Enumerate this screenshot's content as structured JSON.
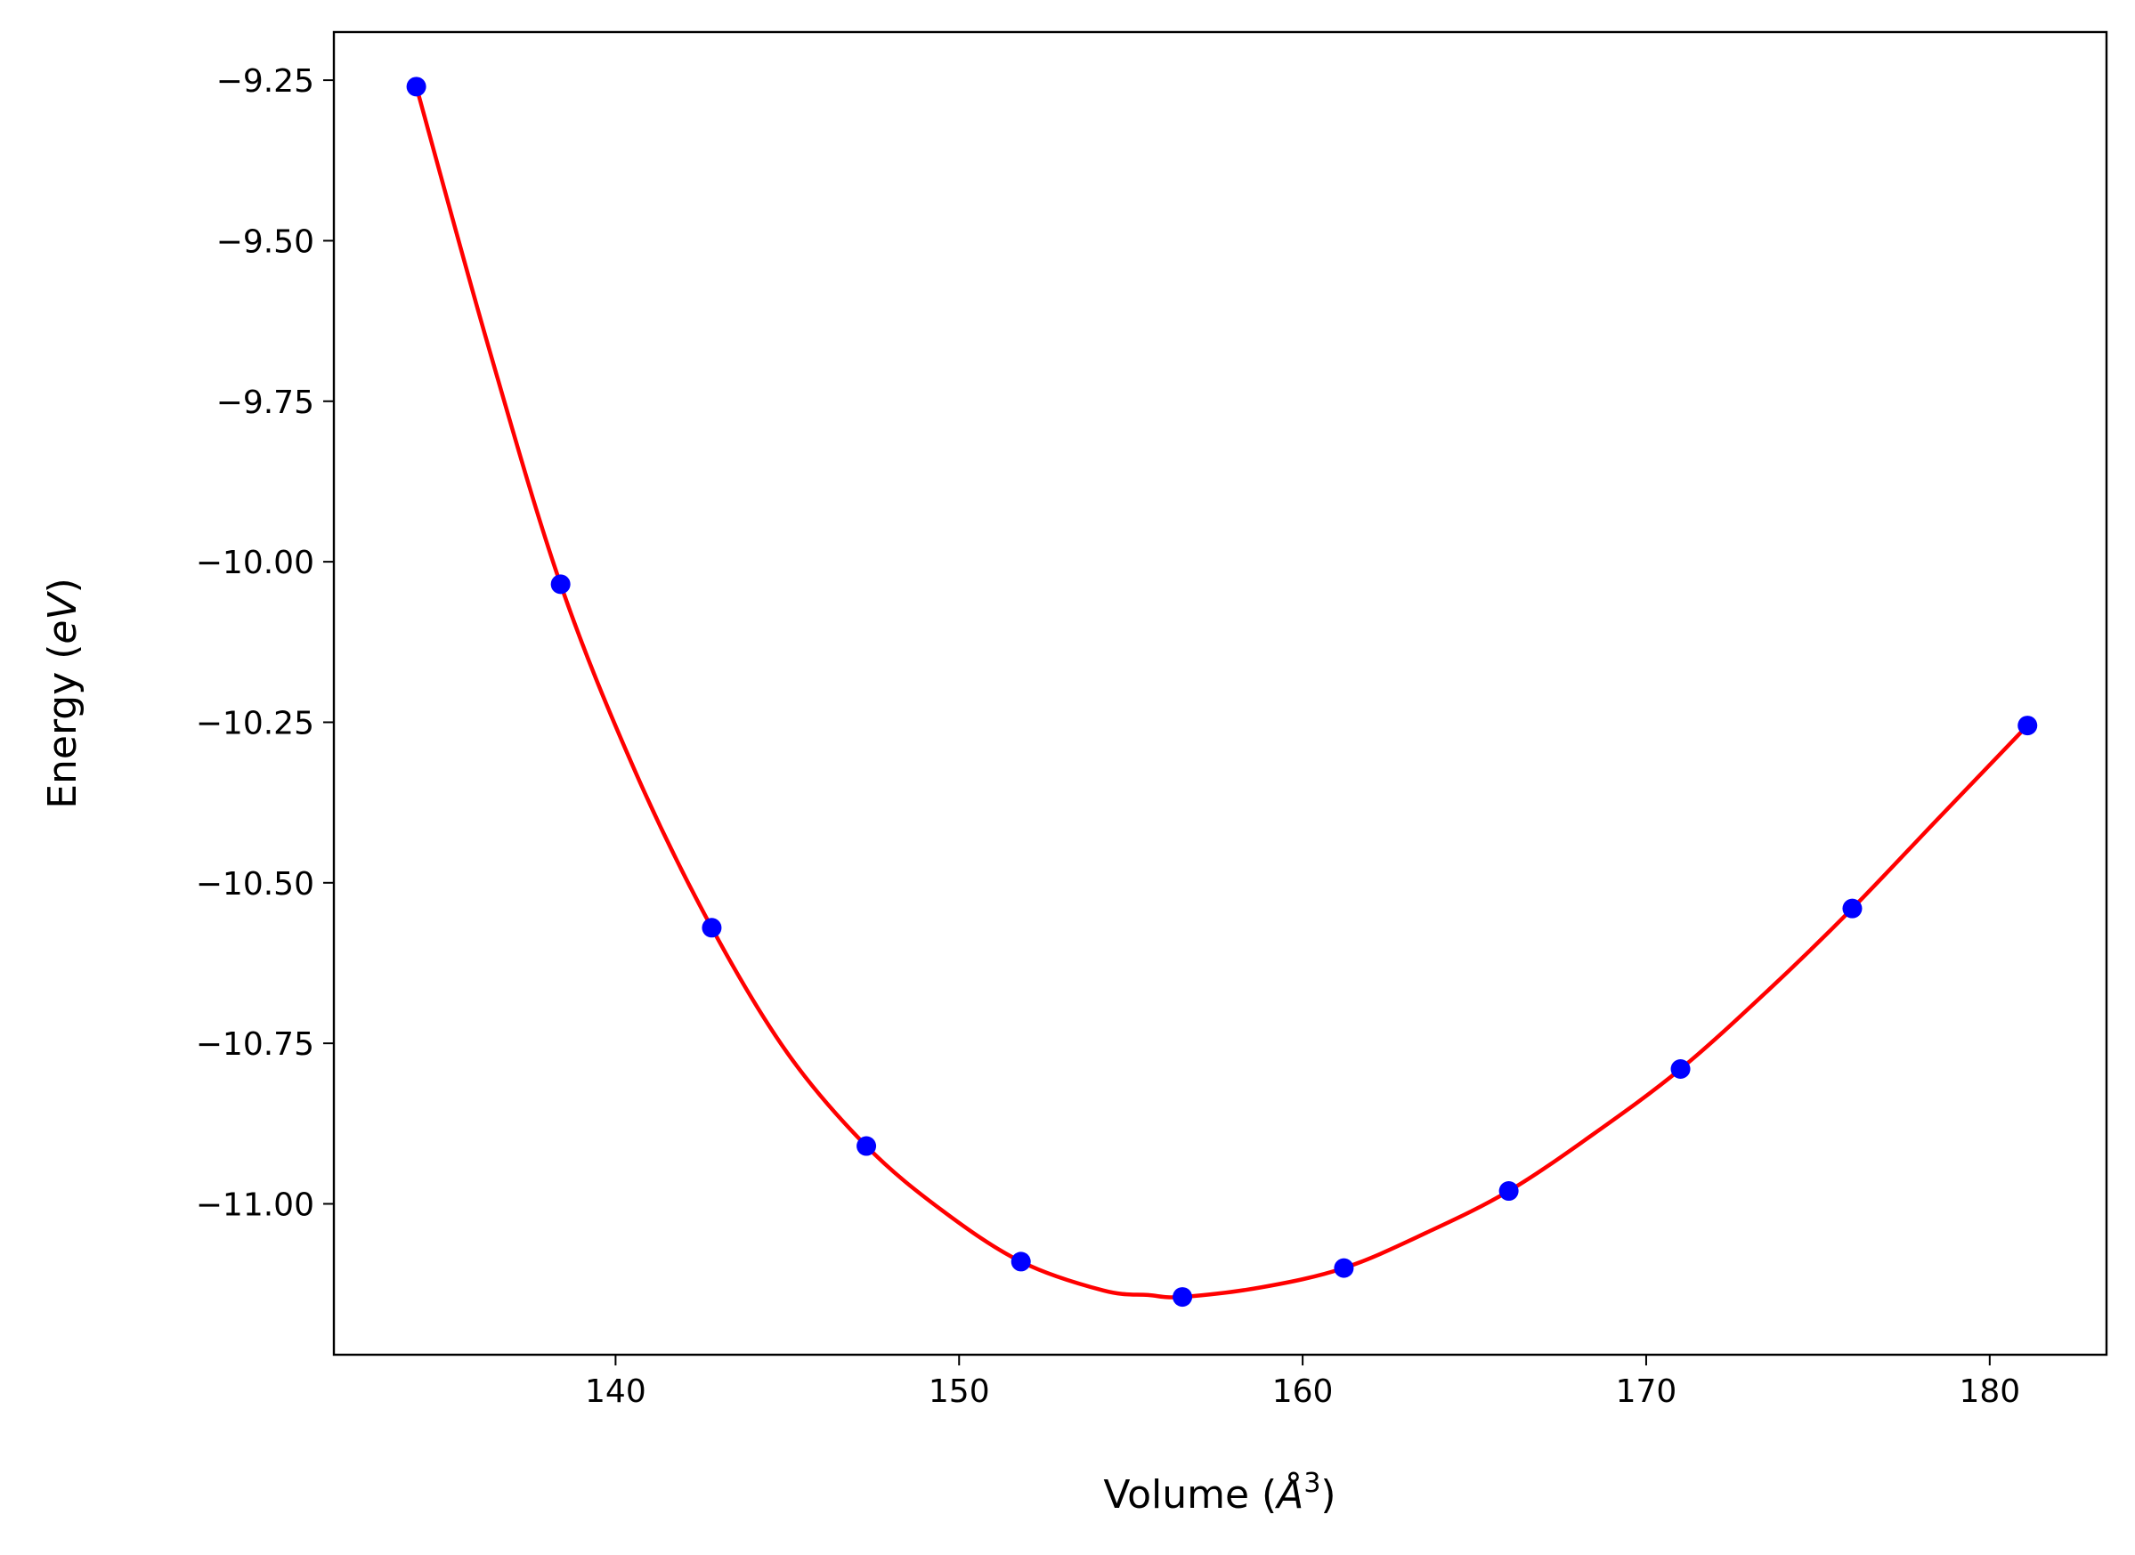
{
  "chart_data": {
    "type": "scatter",
    "xlabel": "Volume (Å³)",
    "ylabel": "Energy (eV)",
    "xlabel_parts": {
      "prefix": "Volume (",
      "unit": "Å",
      "exponent": "3",
      "suffix": ")"
    },
    "ylabel_parts": {
      "prefix": "Energy (",
      "unit": "eV",
      "suffix": ")"
    },
    "xlim": [
      131.8,
      183.4
    ],
    "ylim": [
      -11.235,
      -9.175
    ],
    "xticks": [
      140,
      150,
      160,
      170,
      180
    ],
    "xtick_labels": [
      "140",
      "150",
      "160",
      "170",
      "180"
    ],
    "yticks": [
      -9.25,
      -9.5,
      -9.75,
      -10.0,
      -10.25,
      -10.5,
      -10.75,
      -11.0
    ],
    "ytick_labels": [
      "−9.25",
      "−9.50",
      "−9.75",
      "−10.00",
      "−10.25",
      "−10.50",
      "−10.75",
      "−11.00"
    ],
    "grid": false,
    "series": [
      {
        "kind": "points",
        "color": "#0000ff",
        "x": [
          134.2,
          138.4,
          142.8,
          147.3,
          151.8,
          156.5,
          161.2,
          166.0,
          171.0,
          176.0,
          181.1
        ],
        "y": [
          -9.26,
          -10.035,
          -10.57,
          -10.91,
          -11.09,
          -11.145,
          -11.1,
          -10.98,
          -10.79,
          -10.54,
          -10.255
        ]
      },
      {
        "kind": "fit-curve",
        "color": "#ff0000",
        "x": [
          134.2,
          136.3,
          138.4,
          140.6,
          142.8,
          145.0,
          147.3,
          149.5,
          151.8,
          154.2,
          155.5,
          156.5,
          158.8,
          161.2,
          163.6,
          166.0,
          168.5,
          171.0,
          173.5,
          176.0,
          178.5,
          181.1
        ],
        "y": [
          -9.26,
          -9.665,
          -10.035,
          -10.33,
          -10.57,
          -10.765,
          -10.91,
          -11.01,
          -11.09,
          -11.135,
          -11.142,
          -11.145,
          -11.13,
          -11.1,
          -11.045,
          -10.98,
          -10.89,
          -10.79,
          -10.67,
          -10.54,
          -10.4,
          -10.255
        ]
      }
    ]
  }
}
